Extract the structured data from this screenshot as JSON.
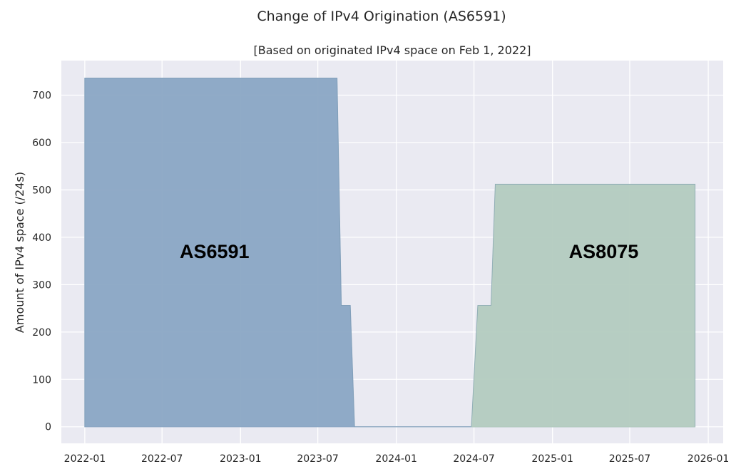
{
  "chart_data": {
    "type": "area",
    "title": "Change of IPv4 Origination (AS6591)",
    "subtitle": "[Based on originated IPv4 space on Feb 1, 2022]",
    "xlabel": "",
    "ylabel": "Amount of IPv4 space (/24s)",
    "xlim": [
      "2021-11-07",
      "2026-02-05"
    ],
    "ylim": [
      -35,
      773
    ],
    "x_ticks": [
      "2022-01",
      "2022-07",
      "2023-01",
      "2023-07",
      "2024-01",
      "2024-07",
      "2025-01",
      "2025-07",
      "2026-01"
    ],
    "y_ticks": [
      0,
      100,
      200,
      300,
      400,
      500,
      600,
      700
    ],
    "grid": true,
    "series": [
      {
        "name": "AS6591",
        "color": "#8aa6c4",
        "points": [
          {
            "x": "2022-01-01",
            "y": 0
          },
          {
            "x": "2022-01-01",
            "y": 736
          },
          {
            "x": "2023-08-15",
            "y": 736
          },
          {
            "x": "2023-08-25",
            "y": 256
          },
          {
            "x": "2023-09-15",
            "y": 256
          },
          {
            "x": "2023-09-25",
            "y": 0
          },
          {
            "x": "2025-12-01",
            "y": 0
          }
        ]
      },
      {
        "name": "AS8075",
        "color": "#b3cbbf",
        "points": [
          {
            "x": "2024-06-25",
            "y": 0
          },
          {
            "x": "2024-07-10",
            "y": 256
          },
          {
            "x": "2024-08-10",
            "y": 256
          },
          {
            "x": "2024-08-20",
            "y": 512
          },
          {
            "x": "2025-12-01",
            "y": 512
          },
          {
            "x": "2025-12-01",
            "y": 0
          }
        ]
      }
    ],
    "annotations": [
      {
        "text": "AS6591",
        "x": "2022-11-01",
        "y": 370
      },
      {
        "text": "AS8075",
        "x": "2025-05-01",
        "y": 370
      }
    ]
  }
}
